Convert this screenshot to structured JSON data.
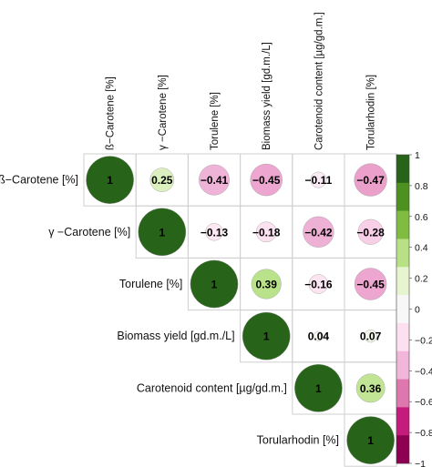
{
  "chart_data": {
    "type": "heatmap",
    "subtype": "correlation-matrix-upper-triangle",
    "title": "",
    "variables": [
      "ß−Carotene [%]",
      "γ −Carotene [%]",
      "Torulene [%]",
      "Biomass yield [gd.m./L]",
      "Carotenoid content [µg/gd.m.]",
      "Torularhodin [%]"
    ],
    "matrix": [
      [
        1,
        0.25,
        -0.41,
        -0.45,
        -0.11,
        -0.47
      ],
      [
        null,
        1,
        -0.13,
        -0.18,
        -0.42,
        -0.28
      ],
      [
        null,
        null,
        1,
        0.39,
        -0.16,
        -0.45
      ],
      [
        null,
        null,
        null,
        1,
        0.04,
        0.07
      ],
      [
        null,
        null,
        null,
        null,
        1,
        0.36
      ],
      [
        null,
        null,
        null,
        null,
        null,
        1
      ]
    ],
    "cell_labels": [
      [
        "1",
        "0.25",
        "−0.41",
        "−0.45",
        "−0.11",
        "−0.47"
      ],
      [
        "",
        "1",
        "−0.13",
        "−0.18",
        "−0.42",
        "−0.28"
      ],
      [
        "",
        "",
        "1",
        "0.39",
        "−0.16",
        "−0.45"
      ],
      [
        "",
        "",
        "",
        "1",
        "0.04",
        "0.07"
      ],
      [
        "",
        "",
        "",
        "",
        "1",
        "0.36"
      ],
      [
        "",
        "",
        "",
        "",
        "",
        "1"
      ]
    ],
    "marker": "circle-area-proportional",
    "colorbar": {
      "range": [
        -1,
        1
      ],
      "tick_labels": [
        "1",
        "0.8",
        "0.6",
        "0.4",
        "0.2",
        "0",
        "−0.2",
        "−0.4",
        "−0.6",
        "−0.8",
        "−1"
      ],
      "tick_values": [
        1,
        0.8,
        0.6,
        0.4,
        0.2,
        0,
        -0.2,
        -0.4,
        -0.6,
        -0.8,
        -1
      ],
      "colors_top_to_bottom": [
        "#276419",
        "#4d9221",
        "#7fbc41",
        "#b8e186",
        "#e6f5d0",
        "#f7f7f7",
        "#fde0ef",
        "#f1b6da",
        "#de77ae",
        "#c51b7d",
        "#8e0152"
      ],
      "placement": "right"
    },
    "grid": true
  }
}
